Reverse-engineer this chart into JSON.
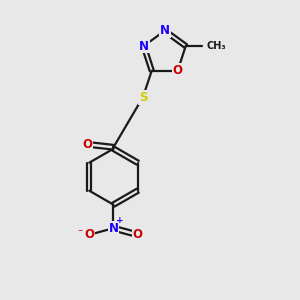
{
  "bg_color": "#e8e8e8",
  "bond_color": "#1a1a1a",
  "bond_width": 1.6,
  "atom_colors": {
    "C": "#1a1a1a",
    "N": "#1a00ff",
    "O": "#cc0000",
    "S": "#cccc00"
  },
  "font_size_atom": 8.5,
  "font_size_small": 7.0,
  "figsize": [
    3.0,
    3.0
  ],
  "dpi": 100
}
